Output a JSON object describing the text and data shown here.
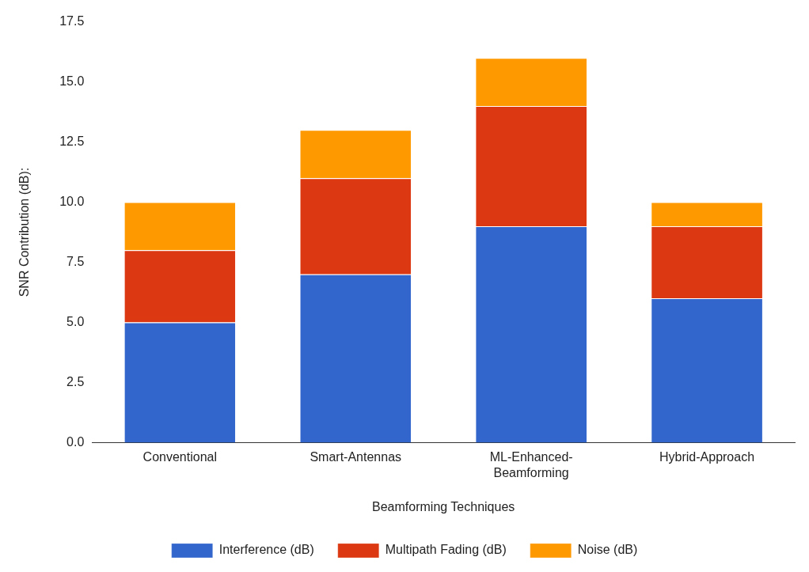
{
  "chart_data": {
    "type": "bar",
    "stacked": true,
    "xlabel": "Beamforming Techniques",
    "ylabel": "SNR Contribution (dB):",
    "categories": [
      "Conventional",
      "Smart-Antennas",
      "ML-Enhanced-Beamforming",
      "Hybrid-Approach"
    ],
    "series": [
      {
        "name": "Interference (dB)",
        "color": "#3366cc",
        "values": [
          5,
          7,
          9,
          6
        ]
      },
      {
        "name": "Multipath Fading (dB)",
        "color": "#dc3912",
        "values": [
          3,
          4,
          5,
          3
        ]
      },
      {
        "name": "Noise (dB)",
        "color": "#ff9900",
        "values": [
          2,
          2,
          2,
          1
        ]
      }
    ],
    "ylim": [
      0,
      17.5
    ],
    "yticks": [
      {
        "value": 0,
        "label": "0.0"
      },
      {
        "value": 2.5,
        "label": "2.5"
      },
      {
        "value": 5,
        "label": "5.0"
      },
      {
        "value": 7.5,
        "label": "7.5"
      },
      {
        "value": 10,
        "label": "10.0"
      },
      {
        "value": 12.5,
        "label": "12.5"
      },
      {
        "value": 15,
        "label": "15.0"
      },
      {
        "value": 17.5,
        "label": "17.5"
      }
    ],
    "grid": false,
    "legend": "bottom"
  }
}
